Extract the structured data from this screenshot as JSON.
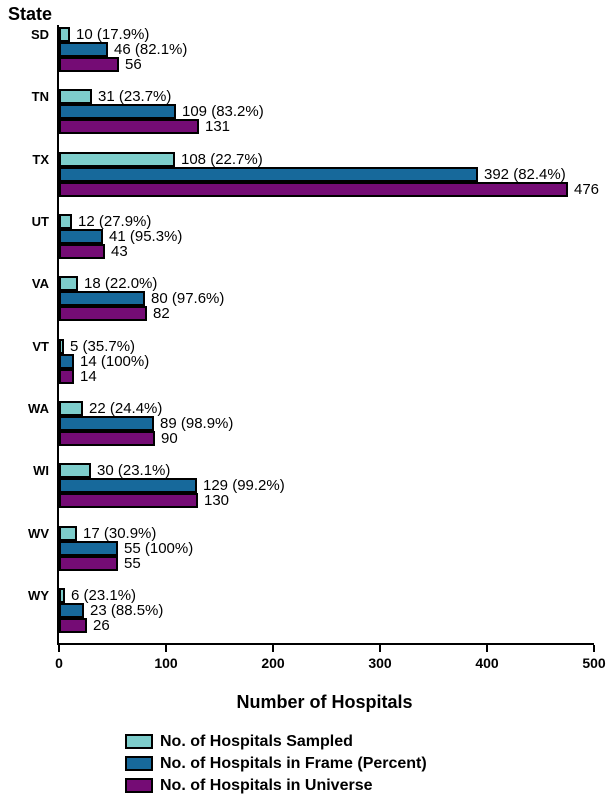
{
  "chart_data": {
    "type": "bar",
    "orientation": "horizontal",
    "y_axis_title": "State",
    "xlabel": "Number of Hospitals",
    "xlim": [
      0,
      500
    ],
    "x_ticks": [
      0,
      100,
      200,
      300,
      400,
      500
    ],
    "grid": false,
    "legend_position": "bottom",
    "categories": [
      "SD",
      "TN",
      "TX",
      "UT",
      "VA",
      "VT",
      "WA",
      "WI",
      "WV",
      "WY"
    ],
    "series": [
      {
        "name": "No. of Hospitals Sampled",
        "color": "#7DCDCB",
        "values": [
          10,
          31,
          108,
          12,
          18,
          5,
          22,
          30,
          17,
          6
        ],
        "labels": [
          "10 (17.9%)",
          "31 (23.7%)",
          "108 (22.7%)",
          "12 (27.9%)",
          "18 (22.0%)",
          "5 (35.7%)",
          "22 (24.4%)",
          "30 (23.1%)",
          "17 (30.9%)",
          "6 (23.1%)"
        ]
      },
      {
        "name": "No. of Hospitals in Frame (Percent)",
        "color": "#17699B",
        "values": [
          46,
          109,
          392,
          41,
          80,
          14,
          89,
          129,
          55,
          23
        ],
        "labels": [
          "46 (82.1%)",
          "109 (83.2%)",
          "392 (82.4%)",
          "41 (95.3%)",
          "80 (97.6%)",
          "14 (100%)",
          "89 (98.9%)",
          "129 (99.2%)",
          "55 (100%)",
          "23 (88.5%)"
        ]
      },
      {
        "name": "No. of Hospitals in Universe",
        "color": "#750C75",
        "values": [
          56,
          131,
          476,
          43,
          82,
          14,
          90,
          130,
          55,
          26
        ],
        "labels": [
          "56",
          "131",
          "476",
          "43",
          "82",
          "14",
          "90",
          "130",
          "55",
          "26"
        ]
      }
    ]
  }
}
